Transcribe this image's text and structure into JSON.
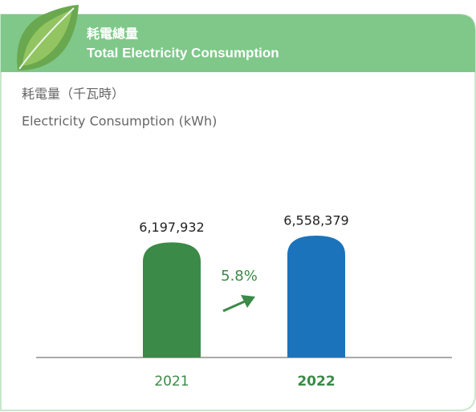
{
  "chart_data": {
    "type": "bar",
    "title": "耗電總量",
    "subtitle": "Total Electricity Consumption",
    "y_label": "耗電量（千瓦時）",
    "y_label_en": "Electricity Consumption (kWh)",
    "categories": [
      "2021",
      "2022"
    ],
    "values": [
      6197932,
      6558379
    ],
    "value_labels": [
      "6,197,932",
      "6,558,379"
    ],
    "colors": [
      "#3b8a47",
      "#1a73bb"
    ],
    "annotation": "5.8%"
  }
}
